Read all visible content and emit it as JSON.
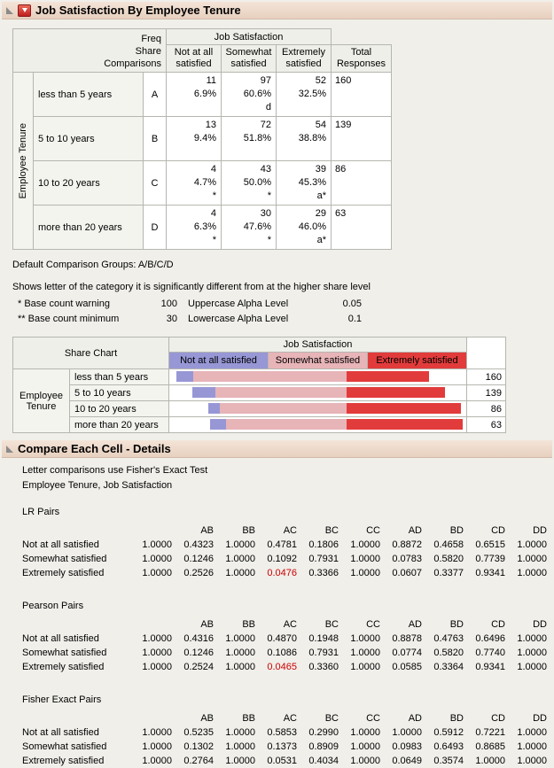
{
  "header": {
    "title": "Job Satisfaction By Employee Tenure"
  },
  "main_table": {
    "corner_lines": [
      "Freq",
      "Share",
      "Comparisons"
    ],
    "col_group_label": "Job Satisfaction",
    "columns": [
      "Not at all satisfied",
      "Somewhat satisfied",
      "Extremely satisfied"
    ],
    "total_label": "Total Responses",
    "row_axis_label": "Employee Tenure",
    "rows": [
      {
        "label": "less than 5 years",
        "letter": "A",
        "cells": [
          {
            "freq": "11",
            "share": "6.9%",
            "comp": ""
          },
          {
            "freq": "97",
            "share": "60.6%",
            "comp": "d"
          },
          {
            "freq": "52",
            "share": "32.5%",
            "comp": ""
          }
        ],
        "total": "160"
      },
      {
        "label": "5 to 10 years",
        "letter": "B",
        "cells": [
          {
            "freq": "13",
            "share": "9.4%",
            "comp": ""
          },
          {
            "freq": "72",
            "share": "51.8%",
            "comp": ""
          },
          {
            "freq": "54",
            "share": "38.8%",
            "comp": ""
          }
        ],
        "total": "139"
      },
      {
        "label": "10 to 20 years",
        "letter": "C",
        "cells": [
          {
            "freq": "4",
            "share": "4.7%",
            "comp": "*"
          },
          {
            "freq": "43",
            "share": "50.0%",
            "comp": "*"
          },
          {
            "freq": "39",
            "share": "45.3%",
            "comp": "a*"
          }
        ],
        "total": "86"
      },
      {
        "label": "more than 20 years",
        "letter": "D",
        "cells": [
          {
            "freq": "4",
            "share": "6.3%",
            "comp": "*"
          },
          {
            "freq": "30",
            "share": "47.6%",
            "comp": "*"
          },
          {
            "freq": "29",
            "share": "46.0%",
            "comp": "a*"
          }
        ],
        "total": "63"
      }
    ]
  },
  "notes": {
    "default_groups": "Default Comparison Groups: A/B/C/D",
    "explanation": "Shows letter of the category it is significantly different from at the higher share level",
    "legend_rows": [
      {
        "label": "* Base count warning",
        "value": "100",
        "label2": "Uppercase Alpha Level",
        "value2": "0.05"
      },
      {
        "label": "** Base count minimum",
        "value": "30",
        "label2": "Lowercase Alpha Level",
        "value2": "0.1"
      }
    ]
  },
  "share_chart": {
    "title": "Share Chart",
    "group_label": "Job Satisfaction",
    "axis_label": "Employee Tenure",
    "legend": [
      {
        "label": "Not at all satisfied",
        "color": "#9797d6"
      },
      {
        "label": "Somewhat satisfied",
        "color": "#e7b4b8"
      },
      {
        "label": "Extremely satisfied",
        "color": "#e23b3b"
      }
    ],
    "rows": [
      {
        "label": "less than 5 years",
        "shares": [
          6.9,
          60.6,
          32.5
        ],
        "total": "160"
      },
      {
        "label": "5 to 10 years",
        "shares": [
          9.4,
          51.8,
          38.8
        ],
        "total": "139"
      },
      {
        "label": "10 to 20 years",
        "shares": [
          4.7,
          50.0,
          45.3
        ],
        "total": "86"
      },
      {
        "label": "more than 20 years",
        "shares": [
          6.3,
          47.6,
          46.0
        ],
        "total": "63"
      }
    ]
  },
  "details": {
    "title": "Compare Each Cell - Details",
    "line1": "Letter comparisons use Fisher's Exact Test",
    "line2": "Employee Tenure, Job Satisfaction",
    "red_color": "#cc0000",
    "pair_headers": [
      "",
      "AB",
      "BB",
      "AC",
      "BC",
      "CC",
      "AD",
      "BD",
      "CD",
      "DD"
    ],
    "sections": [
      {
        "name": "LR Pairs",
        "rows": [
          {
            "label": "Not at all satisfied",
            "values": [
              "1.0000",
              "0.4323",
              "1.0000",
              "0.4781",
              "0.1806",
              "1.0000",
              "0.8872",
              "0.4658",
              "0.6515",
              "1.0000"
            ],
            "red": []
          },
          {
            "label": "Somewhat satisfied",
            "values": [
              "1.0000",
              "0.1246",
              "1.0000",
              "0.1092",
              "0.7931",
              "1.0000",
              "0.0783",
              "0.5820",
              "0.7739",
              "1.0000"
            ],
            "red": []
          },
          {
            "label": "Extremely satisfied",
            "values": [
              "1.0000",
              "0.2526",
              "1.0000",
              "0.0476",
              "0.3366",
              "1.0000",
              "0.0607",
              "0.3377",
              "0.9341",
              "1.0000"
            ],
            "red": [
              3
            ]
          }
        ]
      },
      {
        "name": "Pearson Pairs",
        "rows": [
          {
            "label": "Not at all satisfied",
            "values": [
              "1.0000",
              "0.4316",
              "1.0000",
              "0.4870",
              "0.1948",
              "1.0000",
              "0.8878",
              "0.4763",
              "0.6496",
              "1.0000"
            ],
            "red": []
          },
          {
            "label": "Somewhat satisfied",
            "values": [
              "1.0000",
              "0.1246",
              "1.0000",
              "0.1086",
              "0.7931",
              "1.0000",
              "0.0774",
              "0.5820",
              "0.7740",
              "1.0000"
            ],
            "red": []
          },
          {
            "label": "Extremely satisfied",
            "values": [
              "1.0000",
              "0.2524",
              "1.0000",
              "0.0465",
              "0.3360",
              "1.0000",
              "0.0585",
              "0.3364",
              "0.9341",
              "1.0000"
            ],
            "red": [
              3
            ]
          }
        ]
      },
      {
        "name": "Fisher Exact Pairs",
        "rows": [
          {
            "label": "Not at all satisfied",
            "values": [
              "1.0000",
              "0.5235",
              "1.0000",
              "0.5853",
              "0.2990",
              "1.0000",
              "1.0000",
              "0.5912",
              "0.7221",
              "1.0000"
            ],
            "red": []
          },
          {
            "label": "Somewhat satisfied",
            "values": [
              "1.0000",
              "0.1302",
              "1.0000",
              "0.1373",
              "0.8909",
              "1.0000",
              "0.0983",
              "0.6493",
              "0.8685",
              "1.0000"
            ],
            "red": []
          },
          {
            "label": "Extremely satisfied",
            "values": [
              "1.0000",
              "0.2764",
              "1.0000",
              "0.0531",
              "0.4034",
              "1.0000",
              "0.0649",
              "0.3574",
              "1.0000",
              "1.0000"
            ],
            "red": []
          }
        ]
      }
    ]
  }
}
